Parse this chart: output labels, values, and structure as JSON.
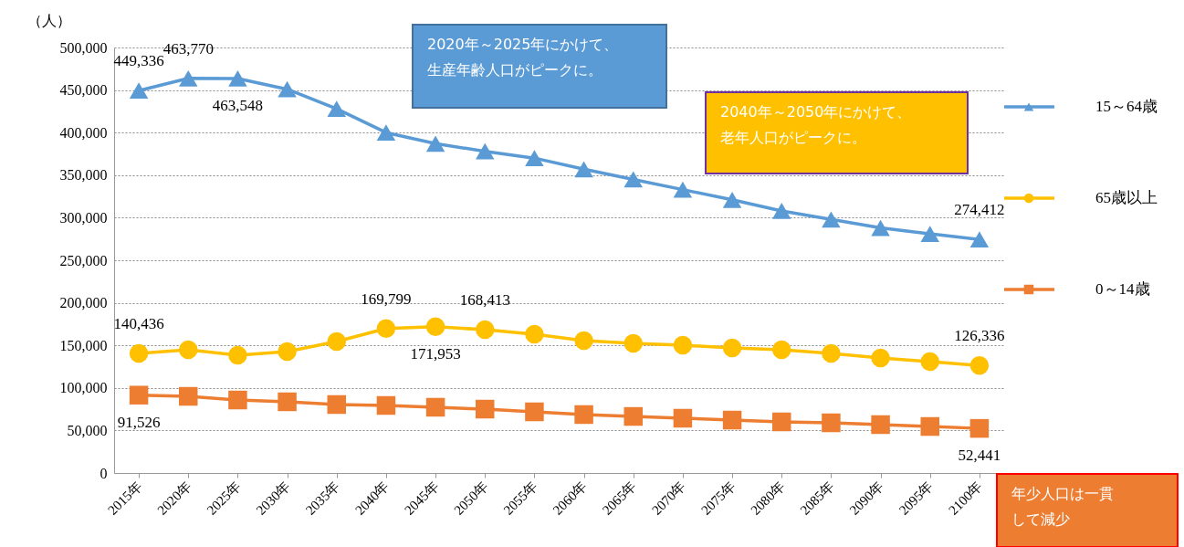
{
  "chart_data": {
    "type": "line",
    "ylabel": "（人）",
    "categories": [
      "2015年",
      "2020年",
      "2025年",
      "2030年",
      "2035年",
      "2040年",
      "2045年",
      "2050年",
      "2055年",
      "2060年",
      "2065年",
      "2070年",
      "2075年",
      "2080年",
      "2085年",
      "2090年",
      "2095年",
      "2100年"
    ],
    "series": [
      {
        "name": "15～64歳",
        "color": "#5b9bd5",
        "marker": "triangle",
        "values": [
          449336,
          463770,
          463548,
          451000,
          428000,
          400000,
          387000,
          378000,
          370000,
          357000,
          345000,
          333000,
          321000,
          308000,
          298000,
          288000,
          281000,
          274412
        ],
        "value_labels": [
          "449,336",
          "463,770",
          "463,548",
          null,
          null,
          null,
          null,
          null,
          null,
          null,
          null,
          null,
          null,
          null,
          null,
          null,
          null,
          "274,412"
        ]
      },
      {
        "name": "65歳以上",
        "color": "#ffc000",
        "marker": "circle",
        "values": [
          140436,
          144800,
          138400,
          142700,
          154500,
          169799,
          171953,
          168413,
          163000,
          155600,
          152400,
          150200,
          147000,
          144800,
          140600,
          135200,
          130900,
          126336
        ],
        "value_labels": [
          "140,436",
          null,
          null,
          null,
          null,
          "169,799",
          "171,953",
          "168,413",
          null,
          null,
          null,
          null,
          null,
          null,
          null,
          null,
          null,
          "126,336"
        ]
      },
      {
        "name": "0～14歳",
        "color": "#ed7d31",
        "marker": "square",
        "values": [
          91526,
          90100,
          85800,
          83700,
          80500,
          79400,
          77300,
          75100,
          71900,
          68700,
          66500,
          64400,
          62200,
          60100,
          59000,
          56900,
          54700,
          52441
        ],
        "value_labels": [
          "91,526",
          null,
          null,
          null,
          null,
          null,
          null,
          null,
          null,
          null,
          null,
          null,
          null,
          null,
          null,
          null,
          null,
          "52,441"
        ]
      }
    ],
    "ylim": [
      0,
      500000
    ],
    "yticks": [
      {
        "value": 0,
        "label": "0"
      },
      {
        "value": 50000,
        "label": "50,000"
      },
      {
        "value": 100000,
        "label": "100,000"
      },
      {
        "value": 150000,
        "label": "150,000"
      },
      {
        "value": 200000,
        "label": "200,000"
      },
      {
        "value": 250000,
        "label": "250,000"
      },
      {
        "value": 300000,
        "label": "300,000"
      },
      {
        "value": 350000,
        "label": "350,000"
      },
      {
        "value": 400000,
        "label": "400,000"
      },
      {
        "value": 450000,
        "label": "450,000"
      },
      {
        "value": 500000,
        "label": "500,000"
      }
    ],
    "grid": "y",
    "legend": "right",
    "line_style": "solid",
    "annotations": [
      "2020年～2025年にかけて、生産年齢人口がピークに。",
      "2040年～2050年にかけて、老年人口がピークに。",
      "年少人口は一貫して減少"
    ]
  }
}
